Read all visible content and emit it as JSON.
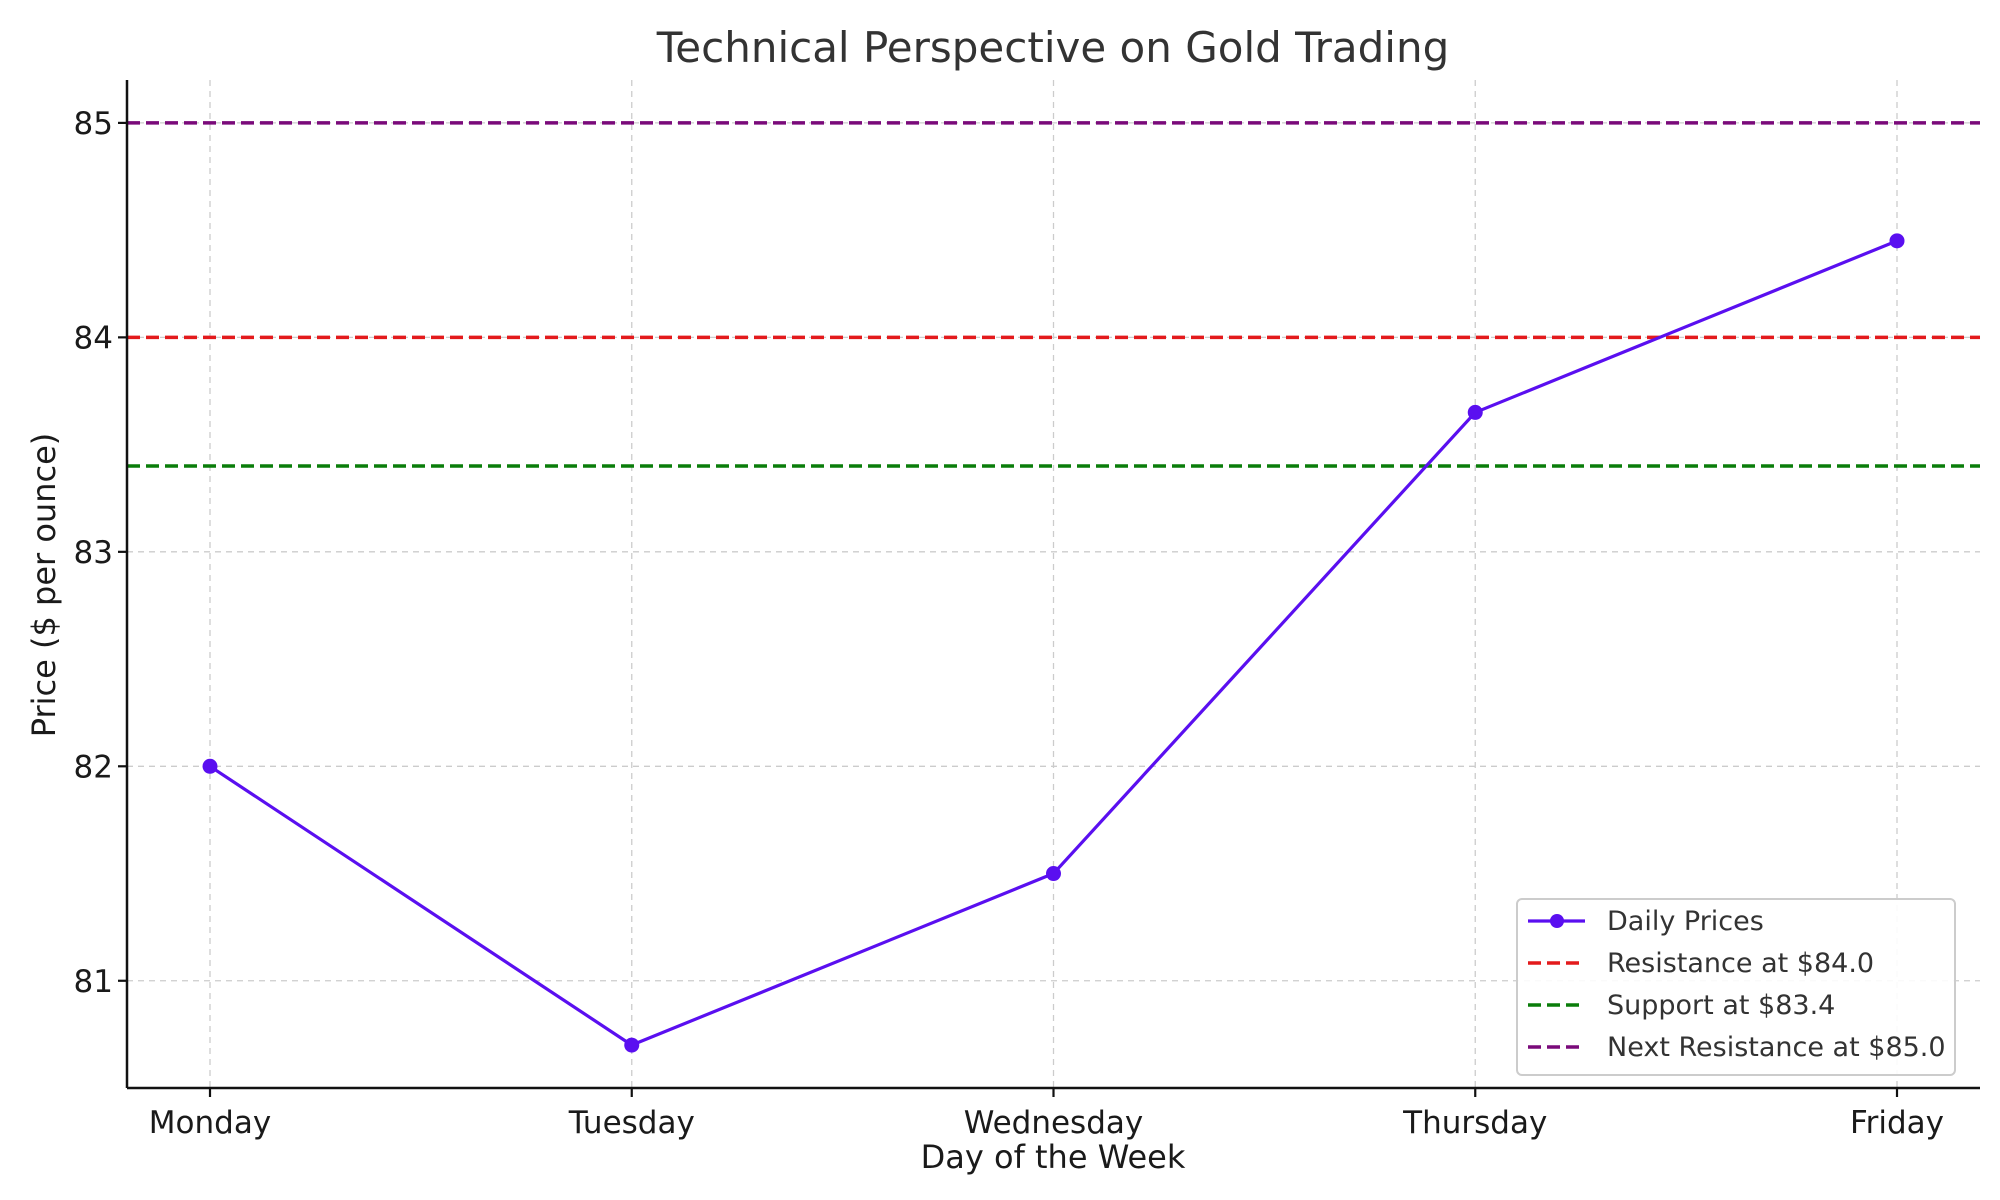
{
  "chart_data": {
    "type": "line",
    "title": "Technical Perspective on Gold Trading",
    "xlabel": "Day of the Week",
    "ylabel": "Price ($ per ounce)",
    "categories": [
      "Monday",
      "Tuesday",
      "Wednesday",
      "Thursday",
      "Friday"
    ],
    "ylim": [
      80.5,
      85.2
    ],
    "yticks": [
      81,
      82,
      83,
      84,
      85
    ],
    "grid": true,
    "legend_position": "lower-right",
    "series": [
      {
        "name": "Daily Prices",
        "values": [
          82.0,
          80.7,
          81.5,
          83.65,
          84.45
        ],
        "color": "#5a0ff0",
        "marker": "circle"
      }
    ],
    "reference_lines": [
      {
        "name": "Resistance at $84.0",
        "value": 84.0,
        "color": "#e31a1c",
        "style": "dashed"
      },
      {
        "name": "Support at $83.4",
        "value": 83.4,
        "color": "#0a7d0a",
        "style": "dashed"
      },
      {
        "name": "Next Resistance at $85.0",
        "value": 85.0,
        "color": "#7a0a7a",
        "style": "dashed"
      }
    ]
  }
}
